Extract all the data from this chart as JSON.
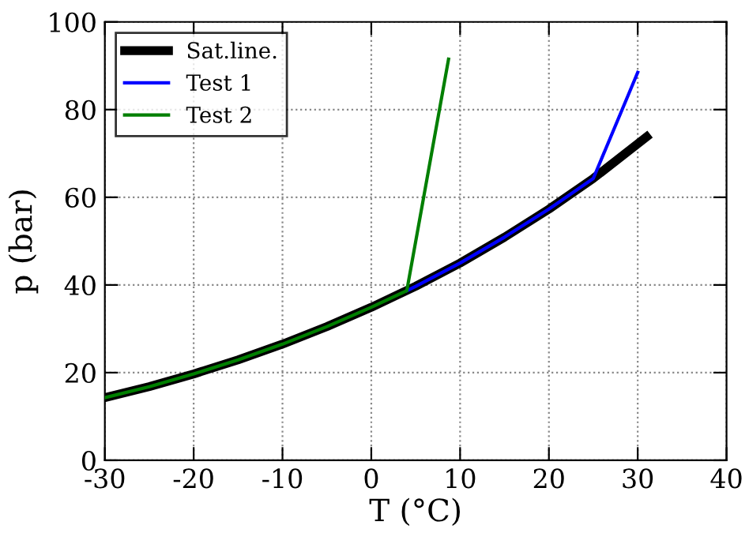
{
  "chart_data": {
    "type": "line",
    "xlabel": "T (°C)",
    "ylabel": "p (bar)",
    "xlim": [
      -30,
      40
    ],
    "xticks": [
      -30,
      -20,
      -10,
      0,
      10,
      20,
      30,
      40
    ],
    "ylim": [
      0,
      100
    ],
    "yticks": [
      0,
      20,
      40,
      60,
      80,
      100
    ],
    "grid": true,
    "legend": "top left",
    "line_style": "solid",
    "marker": "none",
    "series": [
      {
        "name": "Sat.line.",
        "color": "#000000",
        "x": [
          -30,
          -25,
          -20,
          -15,
          -10,
          -5,
          0,
          5,
          10,
          15,
          20,
          25,
          31
        ],
        "values": [
          14.3,
          16.8,
          19.7,
          22.9,
          26.5,
          30.5,
          34.9,
          39.7,
          45.0,
          50.9,
          57.3,
          64.3,
          73.8
        ]
      },
      {
        "name": "Test 1",
        "color": "#0000ff",
        "x": [
          4,
          5,
          10,
          15,
          20,
          25,
          30
        ],
        "values": [
          38.7,
          39.7,
          45.0,
          50.9,
          57.3,
          64.3,
          88.5
        ]
      },
      {
        "name": "Test 2",
        "color": "#007f00",
        "x": [
          -30,
          -25,
          -20,
          -15,
          -10,
          -5,
          0,
          4,
          8.7
        ],
        "values": [
          14.3,
          16.8,
          19.7,
          22.9,
          26.5,
          30.5,
          34.9,
          38.7,
          91.5
        ]
      }
    ]
  }
}
